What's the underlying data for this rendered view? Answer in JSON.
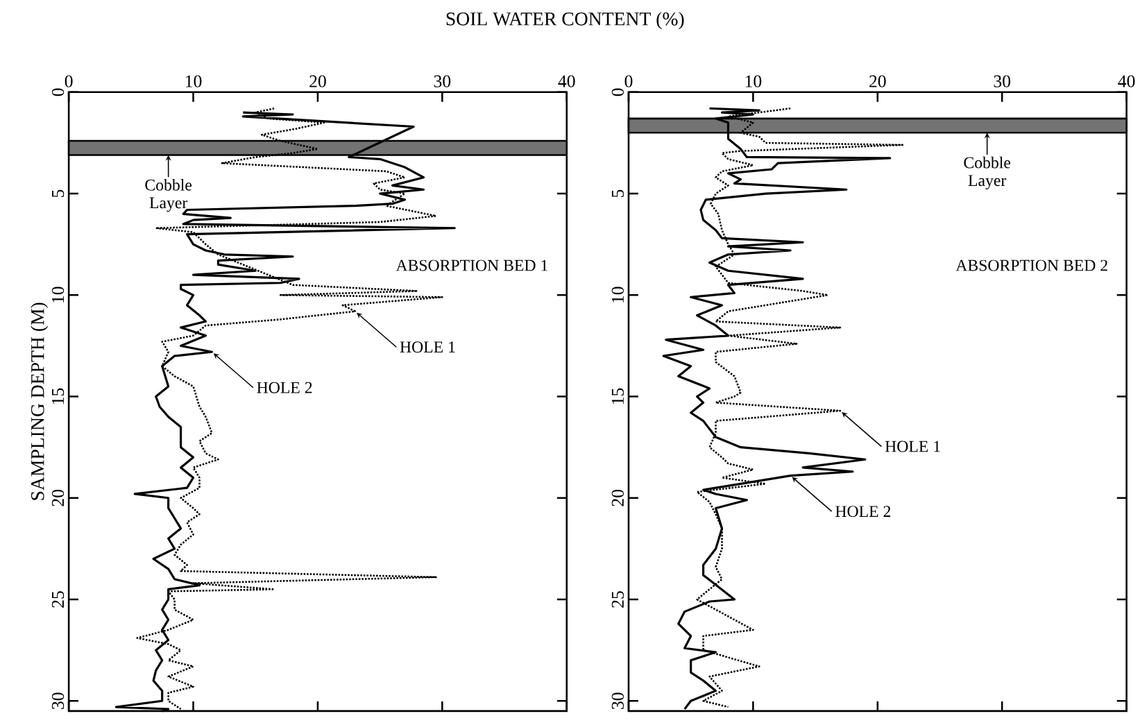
{
  "chart_data": [
    {
      "type": "line",
      "title": "SOIL WATER CONTENT (%)",
      "ylabel": "SAMPLING DEPTH (M)",
      "xlim": [
        0,
        40
      ],
      "xticks": [
        0,
        10,
        20,
        30,
        40
      ],
      "ylim": [
        30.5,
        0
      ],
      "yticks": [
        0,
        5,
        10,
        15,
        20,
        25,
        30
      ],
      "grid": false,
      "series": [
        {
          "color": "#000000",
          "line_style": "dotted",
          "x": [
            16.5,
            15,
            16,
            20.5,
            18.3,
            15.5,
            17,
            20,
            18,
            15,
            12.3,
            25.5,
            27,
            24.5,
            25,
            27,
            26,
            25.5,
            29.5,
            25,
            7,
            10,
            11,
            12,
            14,
            16,
            18,
            28,
            17,
            30,
            22,
            23,
            17,
            11,
            10,
            7.5,
            8,
            7.5,
            8.5,
            10,
            10.5,
            11,
            11.5,
            10.5,
            11,
            12,
            10,
            10.5,
            10.5,
            9,
            10,
            10.5,
            9.5,
            10,
            9,
            8.5,
            9.5,
            9,
            29.5,
            10,
            16.5,
            8,
            8.5,
            8.5,
            10,
            8,
            5.5,
            8,
            9,
            8,
            10,
            8,
            10,
            8,
            8,
            9
          ],
          "values": [
            0.8,
            1.0,
            1.3,
            1.5,
            1.8,
            2.1,
            2.4,
            2.8,
            3.0,
            3.2,
            3.5,
            3.9,
            4.2,
            4.5,
            4.8,
            5.0,
            5.4,
            5.6,
            6.1,
            6.4,
            6.7,
            6.9,
            7.5,
            8.0,
            8.5,
            9.0,
            9.5,
            9.8,
            10.0,
            10.1,
            10.5,
            10.8,
            11.2,
            11.5,
            12.0,
            12.3,
            12.8,
            13.5,
            14.0,
            14.5,
            15.5,
            16.0,
            16.8,
            17.2,
            17.8,
            18.1,
            18.5,
            19.0,
            19.5,
            20.0,
            20.5,
            20.8,
            21.2,
            21.8,
            22.3,
            22.8,
            23.3,
            23.6,
            23.9,
            24.2,
            24.5,
            24.6,
            25.0,
            25.5,
            26.0,
            26.5,
            26.9,
            27.2,
            27.5,
            28.0,
            28.3,
            28.8,
            29.3,
            29.6,
            30.0,
            30.4
          ]
        },
        {
          "color": "#000000",
          "line_style": "solid",
          "x": [
            14,
            18,
            14,
            27.7,
            22.5,
            25,
            27,
            28.5,
            26,
            28.5,
            25,
            27,
            26,
            23,
            9.5,
            9.2,
            13,
            10,
            9.2,
            31,
            9.5,
            10,
            11,
            12.5,
            18,
            12,
            12,
            15,
            10,
            18.5,
            17,
            9,
            9,
            10,
            9.5,
            10.5,
            11,
            9,
            11,
            9,
            11.5,
            8.5,
            7.5,
            8,
            7,
            7.3,
            8,
            9,
            9,
            10,
            9,
            10,
            9.5,
            5.3,
            8,
            8,
            8.5,
            9,
            8,
            8.5,
            6.8,
            8,
            8.5,
            10.5,
            8,
            8,
            7.5,
            8,
            7.5,
            8,
            7,
            7.5,
            7,
            6.8,
            7.5,
            7.5,
            3.8,
            8,
            7.5
          ],
          "values": [
            1.0,
            1.1,
            1.2,
            1.7,
            3.2,
            3.3,
            3.7,
            4.2,
            4.6,
            4.8,
            5.0,
            5.3,
            5.5,
            5.6,
            5.8,
            6.0,
            6.2,
            6.3,
            6.5,
            6.7,
            7.0,
            7.5,
            7.8,
            8.0,
            8.1,
            8.3,
            8.5,
            8.8,
            9.0,
            9.2,
            9.4,
            9.5,
            9.7,
            10.0,
            10.5,
            11.0,
            11.3,
            11.6,
            12.0,
            12.5,
            12.8,
            13.0,
            13.5,
            14.5,
            15.0,
            15.5,
            16.0,
            16.5,
            17.5,
            18.0,
            18.5,
            19.0,
            19.5,
            19.8,
            20.0,
            20.5,
            21.0,
            21.5,
            22.0,
            22.5,
            23.0,
            23.5,
            24.0,
            24.3,
            24.5,
            25.0,
            25.5,
            26.0,
            26.5,
            27.0,
            27.5,
            28.0,
            28.5,
            29.0,
            29.5,
            30.0,
            30.3,
            30.4,
            30.5
          ]
        }
      ],
      "bands": [
        {
          "axis": "y",
          "from": 2.4,
          "to": 3.1,
          "label": "Cobble Layer"
        }
      ],
      "annotations": [
        "ABSORPTION BED 1",
        {
          "text": "HOLE 1",
          "x": 23,
          "y": 10.8
        },
        {
          "text": "HOLE 2",
          "x": 11.5,
          "y": 12.8
        }
      ]
    },
    {
      "type": "line",
      "xlim": [
        0,
        40
      ],
      "xticks": [
        0,
        10,
        20,
        30,
        40
      ],
      "ylim": [
        30.5,
        0
      ],
      "yticks": [
        0,
        5,
        10,
        15,
        20,
        25,
        30
      ],
      "grid": false,
      "series": [
        {
          "color": "#000000",
          "line_style": "dotted",
          "x": [
            13,
            8,
            10,
            9,
            10.5,
            11,
            22,
            9,
            7.5,
            8,
            10,
            7.5,
            7,
            8,
            7,
            6.6,
            7.2,
            7.5,
            8,
            8.5,
            7,
            8,
            14,
            16,
            13,
            8,
            7,
            17,
            8,
            13.5,
            7,
            7,
            8.5,
            9,
            8.5,
            7,
            17,
            7,
            7,
            6.5,
            7.5,
            8,
            10,
            7.5,
            11,
            5.5,
            6.5,
            7,
            7.5,
            7.5,
            7,
            7.5,
            6.5,
            5.5,
            7,
            10,
            6,
            6,
            10.5,
            6.5,
            7.5,
            6,
            8
          ],
          "values": [
            0.8,
            1.2,
            1.5,
            2.0,
            2.2,
            2.5,
            2.6,
            2.9,
            3.0,
            3.3,
            3.6,
            3.9,
            4.2,
            4.6,
            5.0,
            5.5,
            6.0,
            6.8,
            7.5,
            8.0,
            8.6,
            9.4,
            9.8,
            10.0,
            10.3,
            10.8,
            11.3,
            11.6,
            12.0,
            12.4,
            12.8,
            13.3,
            14.0,
            14.8,
            15.0,
            15.3,
            15.7,
            16.2,
            16.8,
            17.5,
            18.0,
            18.3,
            18.6,
            19.0,
            19.3,
            19.7,
            20.2,
            20.8,
            21.5,
            22.5,
            23.4,
            24.0,
            24.5,
            25.0,
            25.5,
            26.5,
            26.8,
            27.5,
            28.3,
            28.8,
            29.5,
            30.0,
            30.3
          ]
        },
        {
          "color": "#000000",
          "line_style": "solid",
          "x": [
            6.5,
            10.5,
            7.5,
            10,
            7,
            8,
            8,
            9,
            9.5,
            21,
            12,
            11.5,
            8,
            9,
            8.5,
            17.5,
            11,
            6.2,
            5.8,
            6,
            7,
            7.5,
            14,
            8,
            13,
            8,
            6.5,
            8,
            14,
            8,
            8.5,
            5,
            7.5,
            5.5,
            7,
            8,
            3,
            6,
            2.8,
            5,
            4,
            6.5,
            5.5,
            6,
            5,
            6,
            7,
            9,
            14.5,
            19,
            14,
            18,
            13,
            9,
            6,
            7,
            9.5,
            7,
            7.5,
            7,
            6,
            6,
            8.5,
            6.5,
            4.5,
            4,
            5,
            4.5,
            7,
            5,
            5,
            6,
            7,
            5,
            4.5
          ],
          "values": [
            0.8,
            0.9,
            1.0,
            1.1,
            1.3,
            1.5,
            2.3,
            2.8,
            3.2,
            3.25,
            3.5,
            3.8,
            4.0,
            4.3,
            4.5,
            4.8,
            5.0,
            5.3,
            5.8,
            6.3,
            6.8,
            7.2,
            7.4,
            7.6,
            7.8,
            8.0,
            8.4,
            8.8,
            9.2,
            9.5,
            9.9,
            10.1,
            10.5,
            11.0,
            11.5,
            12.0,
            12.2,
            12.7,
            13.0,
            13.5,
            14.0,
            14.6,
            15.0,
            15.3,
            15.8,
            16.2,
            17.0,
            17.5,
            17.8,
            18.1,
            18.5,
            18.7,
            18.9,
            19.3,
            19.6,
            19.8,
            20.1,
            20.5,
            21.5,
            22.5,
            23.3,
            23.8,
            25.0,
            25.1,
            25.6,
            26.2,
            26.8,
            27.4,
            27.6,
            28.0,
            28.6,
            29.0,
            29.5,
            30.0,
            30.4
          ]
        }
      ],
      "bands": [
        {
          "axis": "y",
          "from": 1.3,
          "to": 2.0,
          "label": "Cobble Layer"
        }
      ],
      "annotations": [
        "ABSORPTION BED 2",
        {
          "text": "HOLE 1",
          "x": 17,
          "y": 15.7
        },
        {
          "text": "HOLE 2",
          "x": 13,
          "y": 18.9
        }
      ]
    }
  ]
}
